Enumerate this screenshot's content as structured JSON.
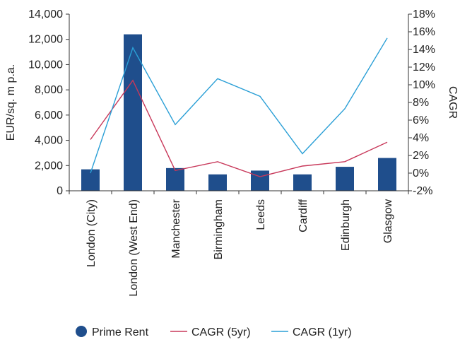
{
  "chart_data": {
    "type": "bar",
    "categories": [
      "London (City)",
      "London (West End)",
      "Manchester",
      "Birmingham",
      "Leeds",
      "Cardiff",
      "Edinburgh",
      "Glasgow"
    ],
    "series": [
      {
        "name": "Prime Rent",
        "type": "bar",
        "axis": "left",
        "color": "#1f4e8c",
        "values": [
          1700,
          12400,
          1800,
          1300,
          1600,
          1300,
          1900,
          2600
        ]
      },
      {
        "name": "CAGR (5yr)",
        "type": "line",
        "axis": "right",
        "color": "#c8385a",
        "values": [
          3.8,
          10.5,
          0.3,
          1.3,
          -0.4,
          0.8,
          1.3,
          3.5
        ]
      },
      {
        "name": "CAGR (1yr)",
        "type": "line",
        "axis": "right",
        "color": "#2a9fd6",
        "values": [
          0.0,
          14.2,
          5.5,
          10.7,
          8.7,
          2.2,
          7.3,
          15.3
        ]
      }
    ],
    "ylabel": "EUR/sq. m p.a.",
    "y2label": "CAGR",
    "ylim": [
      0,
      14000
    ],
    "y2lim": [
      -2,
      18
    ],
    "yticks": [
      "0",
      "2,000",
      "4,000",
      "6,000",
      "8,000",
      "10,000",
      "12,000",
      "14,000"
    ],
    "y2ticks": [
      "-2%",
      "0%",
      "2%",
      "4%",
      "6%",
      "8%",
      "10%",
      "12%",
      "14%",
      "16%",
      "18%"
    ],
    "grid": false,
    "legend_position": "bottom"
  }
}
